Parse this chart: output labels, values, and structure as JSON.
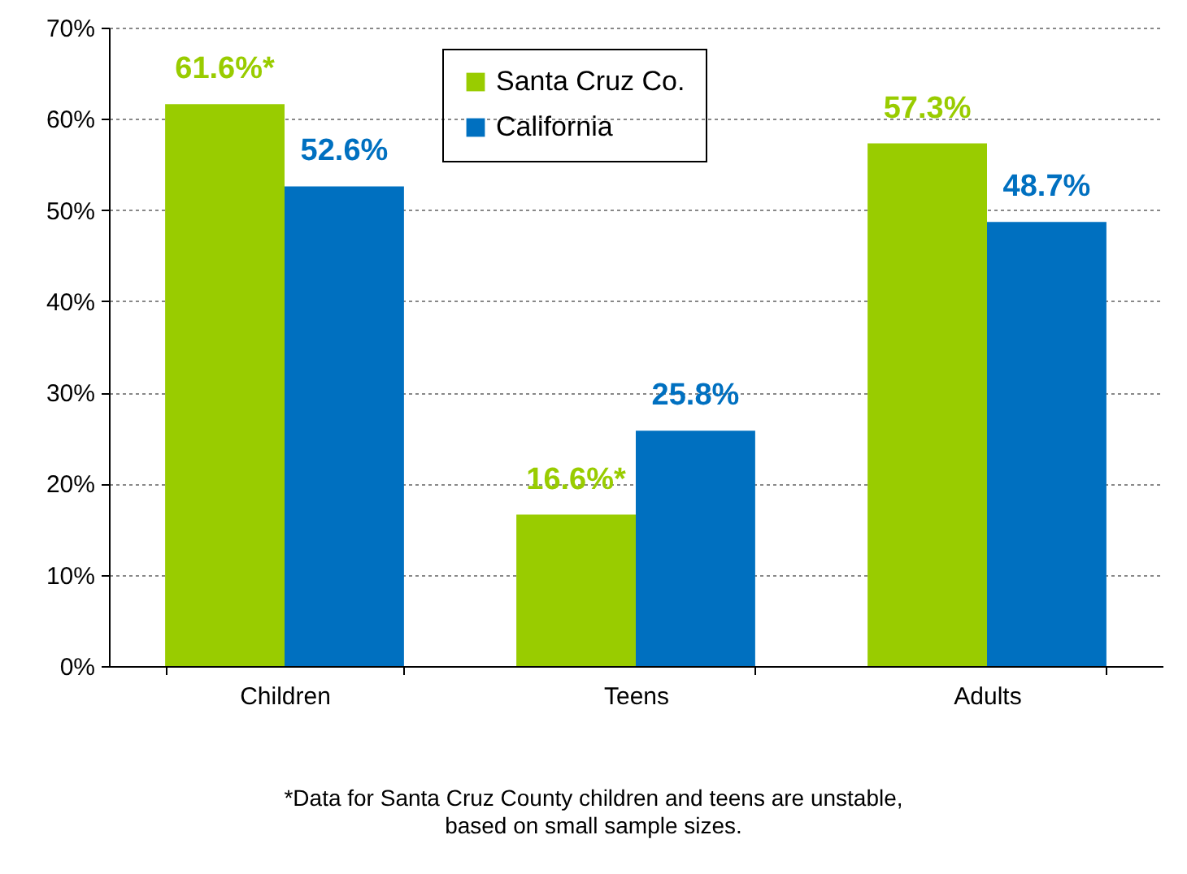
{
  "chart_data": {
    "type": "bar",
    "categories": [
      "Children",
      "Teens",
      "Adults"
    ],
    "series": [
      {
        "name": "Santa Cruz Co.",
        "color": "#99cc00",
        "values": [
          61.6,
          16.6,
          57.3
        ],
        "value_labels": [
          "61.6%*",
          "16.6%*",
          "57.3%"
        ]
      },
      {
        "name": "California",
        "color": "#0070c0",
        "values": [
          52.6,
          25.8,
          48.7
        ],
        "value_labels": [
          "52.6%",
          "25.8%",
          "48.7%"
        ]
      }
    ],
    "ylim": [
      0,
      70
    ],
    "yticks": [
      {
        "value": 0,
        "label": "0%"
      },
      {
        "value": 10,
        "label": "10%"
      },
      {
        "value": 20,
        "label": "20%"
      },
      {
        "value": 30,
        "label": "30%"
      },
      {
        "value": 40,
        "label": "40%"
      },
      {
        "value": 50,
        "label": "50%"
      },
      {
        "value": 60,
        "label": "60%"
      },
      {
        "value": 70,
        "label": "70%"
      }
    ],
    "grid": "y",
    "legend": "top",
    "annotations": [
      "*Data for Santa Cruz County children and teens are unstable, based on small sample sizes."
    ]
  }
}
